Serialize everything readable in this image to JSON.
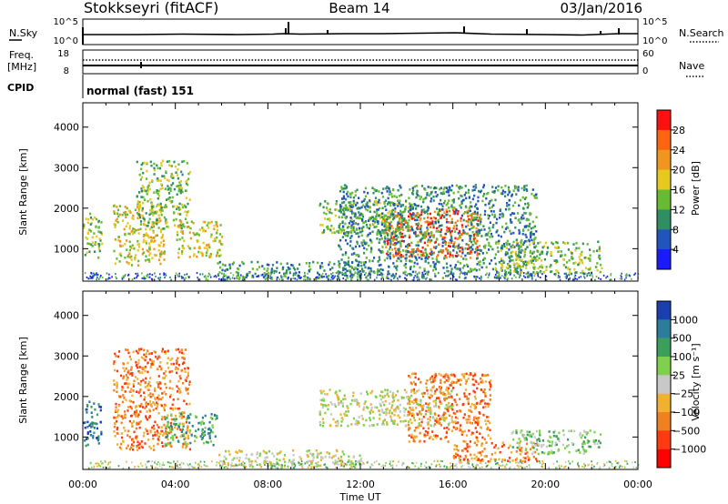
{
  "header": {
    "station": "Stokkseyri (fitACF)",
    "beam": "Beam 14",
    "date": "03/Jan/2016"
  },
  "summary_panel": {
    "nsky_label": "N.Sky",
    "nsky_ticks": [
      "10^5",
      "10^0"
    ],
    "nsearch_label": "N.Search",
    "nsearch_ticks": [
      "10^5",
      "10^0"
    ],
    "freq_label_1": "Freq.",
    "freq_label_2": "[MHz]",
    "freq_ticks": [
      "18",
      "8"
    ],
    "nave_label": "Nave",
    "nave_ticks": [
      "60",
      "0"
    ],
    "cpid_label": "CPID",
    "cpid_value": "normal (fast) 151"
  },
  "chart_data": [
    {
      "type": "heatmap",
      "name": "power",
      "ylabel": "Slant Range [km]",
      "yticks": [
        "1000",
        "2000",
        "3000",
        "4000"
      ],
      "ylim": [
        200,
        4600
      ],
      "xlim": [
        0,
        24
      ],
      "colorbar": {
        "label": "Power [dB]",
        "ticks": [
          "4",
          "8",
          "12",
          "16",
          "20",
          "24",
          "28"
        ],
        "colors": [
          "#1a1aff",
          "#2255bb",
          "#2f8f63",
          "#66bb33",
          "#e6c81e",
          "#f0961e",
          "#ff6410",
          "#ff1010"
        ]
      },
      "patches": [
        {
          "t": [
            0.0,
            0.8
          ],
          "r": [
            800,
            1900
          ],
          "level": 3
        },
        {
          "t": [
            1.3,
            3.5
          ],
          "r": [
            600,
            2100
          ],
          "level": 4
        },
        {
          "t": [
            2.3,
            4.6
          ],
          "r": [
            1500,
            3200
          ],
          "level": 3
        },
        {
          "t": [
            4.0,
            6.0
          ],
          "r": [
            800,
            1700
          ],
          "level": 4
        },
        {
          "t": [
            10.2,
            14.2
          ],
          "r": [
            1400,
            2200
          ],
          "level": 3
        },
        {
          "t": [
            13.0,
            17.2
          ],
          "r": [
            800,
            2000
          ],
          "level": 6
        },
        {
          "t": [
            11.0,
            19.6
          ],
          "r": [
            300,
            2600
          ],
          "level": 2
        },
        {
          "t": [
            17.8,
            22.4
          ],
          "r": [
            400,
            1200
          ],
          "level": 3
        },
        {
          "t": [
            5.8,
            12.0
          ],
          "r": [
            250,
            700
          ],
          "level": 2
        }
      ]
    },
    {
      "type": "heatmap",
      "name": "velocity",
      "ylabel": "Slant Range [km]",
      "xlabel": "Time UT",
      "xticks": [
        "00:00",
        "04:00",
        "08:00",
        "12:00",
        "16:00",
        "20:00",
        "00:00"
      ],
      "yticks": [
        "1000",
        "2000",
        "3000",
        "4000"
      ],
      "ylim": [
        200,
        4600
      ],
      "xlim": [
        0,
        24
      ],
      "colorbar": {
        "label": "Velocity [m s⁻¹]",
        "ticks": [
          "1000",
          "500",
          "100",
          "25",
          "−25",
          "−100",
          "−500",
          "−1000"
        ],
        "colors": [
          "#1a3fb0",
          "#2c7d9c",
          "#3a9f5a",
          "#7fd14d",
          "#c8c8c8",
          "#f0b030",
          "#f08020",
          "#ff3a10",
          "#ff0000"
        ]
      },
      "patches": [
        {
          "t": [
            0.0,
            0.8
          ],
          "r": [
            800,
            1900
          ],
          "level": 1
        },
        {
          "t": [
            1.3,
            4.6
          ],
          "r": [
            700,
            3200
          ],
          "level": 6
        },
        {
          "t": [
            3.5,
            5.8
          ],
          "r": [
            800,
            1600
          ],
          "level": 2
        },
        {
          "t": [
            10.2,
            16.0
          ],
          "r": [
            1300,
            2200
          ],
          "level": 4
        },
        {
          "t": [
            14.0,
            17.6
          ],
          "r": [
            900,
            2600
          ],
          "level": 6
        },
        {
          "t": [
            16.0,
            19.6
          ],
          "r": [
            400,
            900
          ],
          "level": 6
        },
        {
          "t": [
            18.5,
            22.4
          ],
          "r": [
            600,
            1200
          ],
          "level": 3
        },
        {
          "t": [
            5.8,
            12.0
          ],
          "r": [
            250,
            700
          ],
          "level": 4
        }
      ]
    }
  ]
}
